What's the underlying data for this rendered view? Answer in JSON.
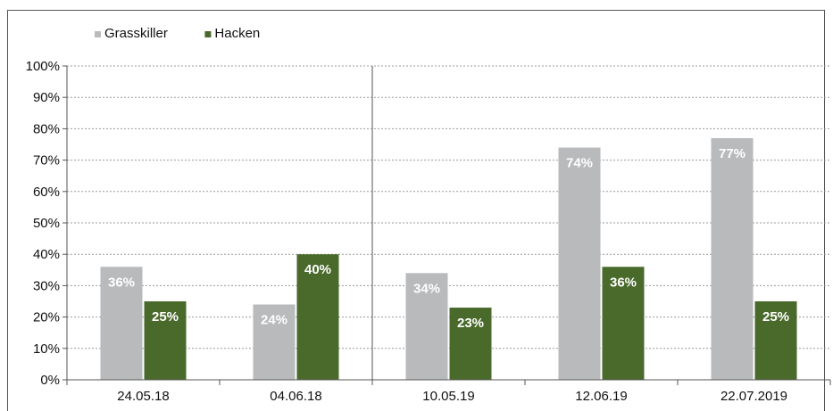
{
  "chart_data": {
    "type": "bar",
    "categories": [
      "24.05.18",
      "04.06.18",
      "10.05.19",
      "12.06.19",
      "22.07.2019"
    ],
    "series": [
      {
        "name": "Grasskiller",
        "values": [
          36,
          24,
          34,
          74,
          77
        ],
        "labels": [
          "36%",
          "24%",
          "34%",
          "74%",
          "77%"
        ]
      },
      {
        "name": "Hacken",
        "values": [
          25,
          40,
          23,
          36,
          25
        ],
        "labels": [
          "25%",
          "40%",
          "23%",
          "36%",
          "25%"
        ]
      }
    ],
    "y_ticks": [
      "0%",
      "10%",
      "20%",
      "30%",
      "40%",
      "50%",
      "60%",
      "70%",
      "80%",
      "90%",
      "100%"
    ],
    "ylim": [
      0,
      100
    ],
    "y_tick_step": 10,
    "grid": true,
    "legend_position": "top-left",
    "group_separator_after_category": 1,
    "colors": {
      "Grasskiller": "#b9babc",
      "Hacken": "#4a6a2c",
      "grid": "#999999",
      "axis": "#555555"
    }
  }
}
